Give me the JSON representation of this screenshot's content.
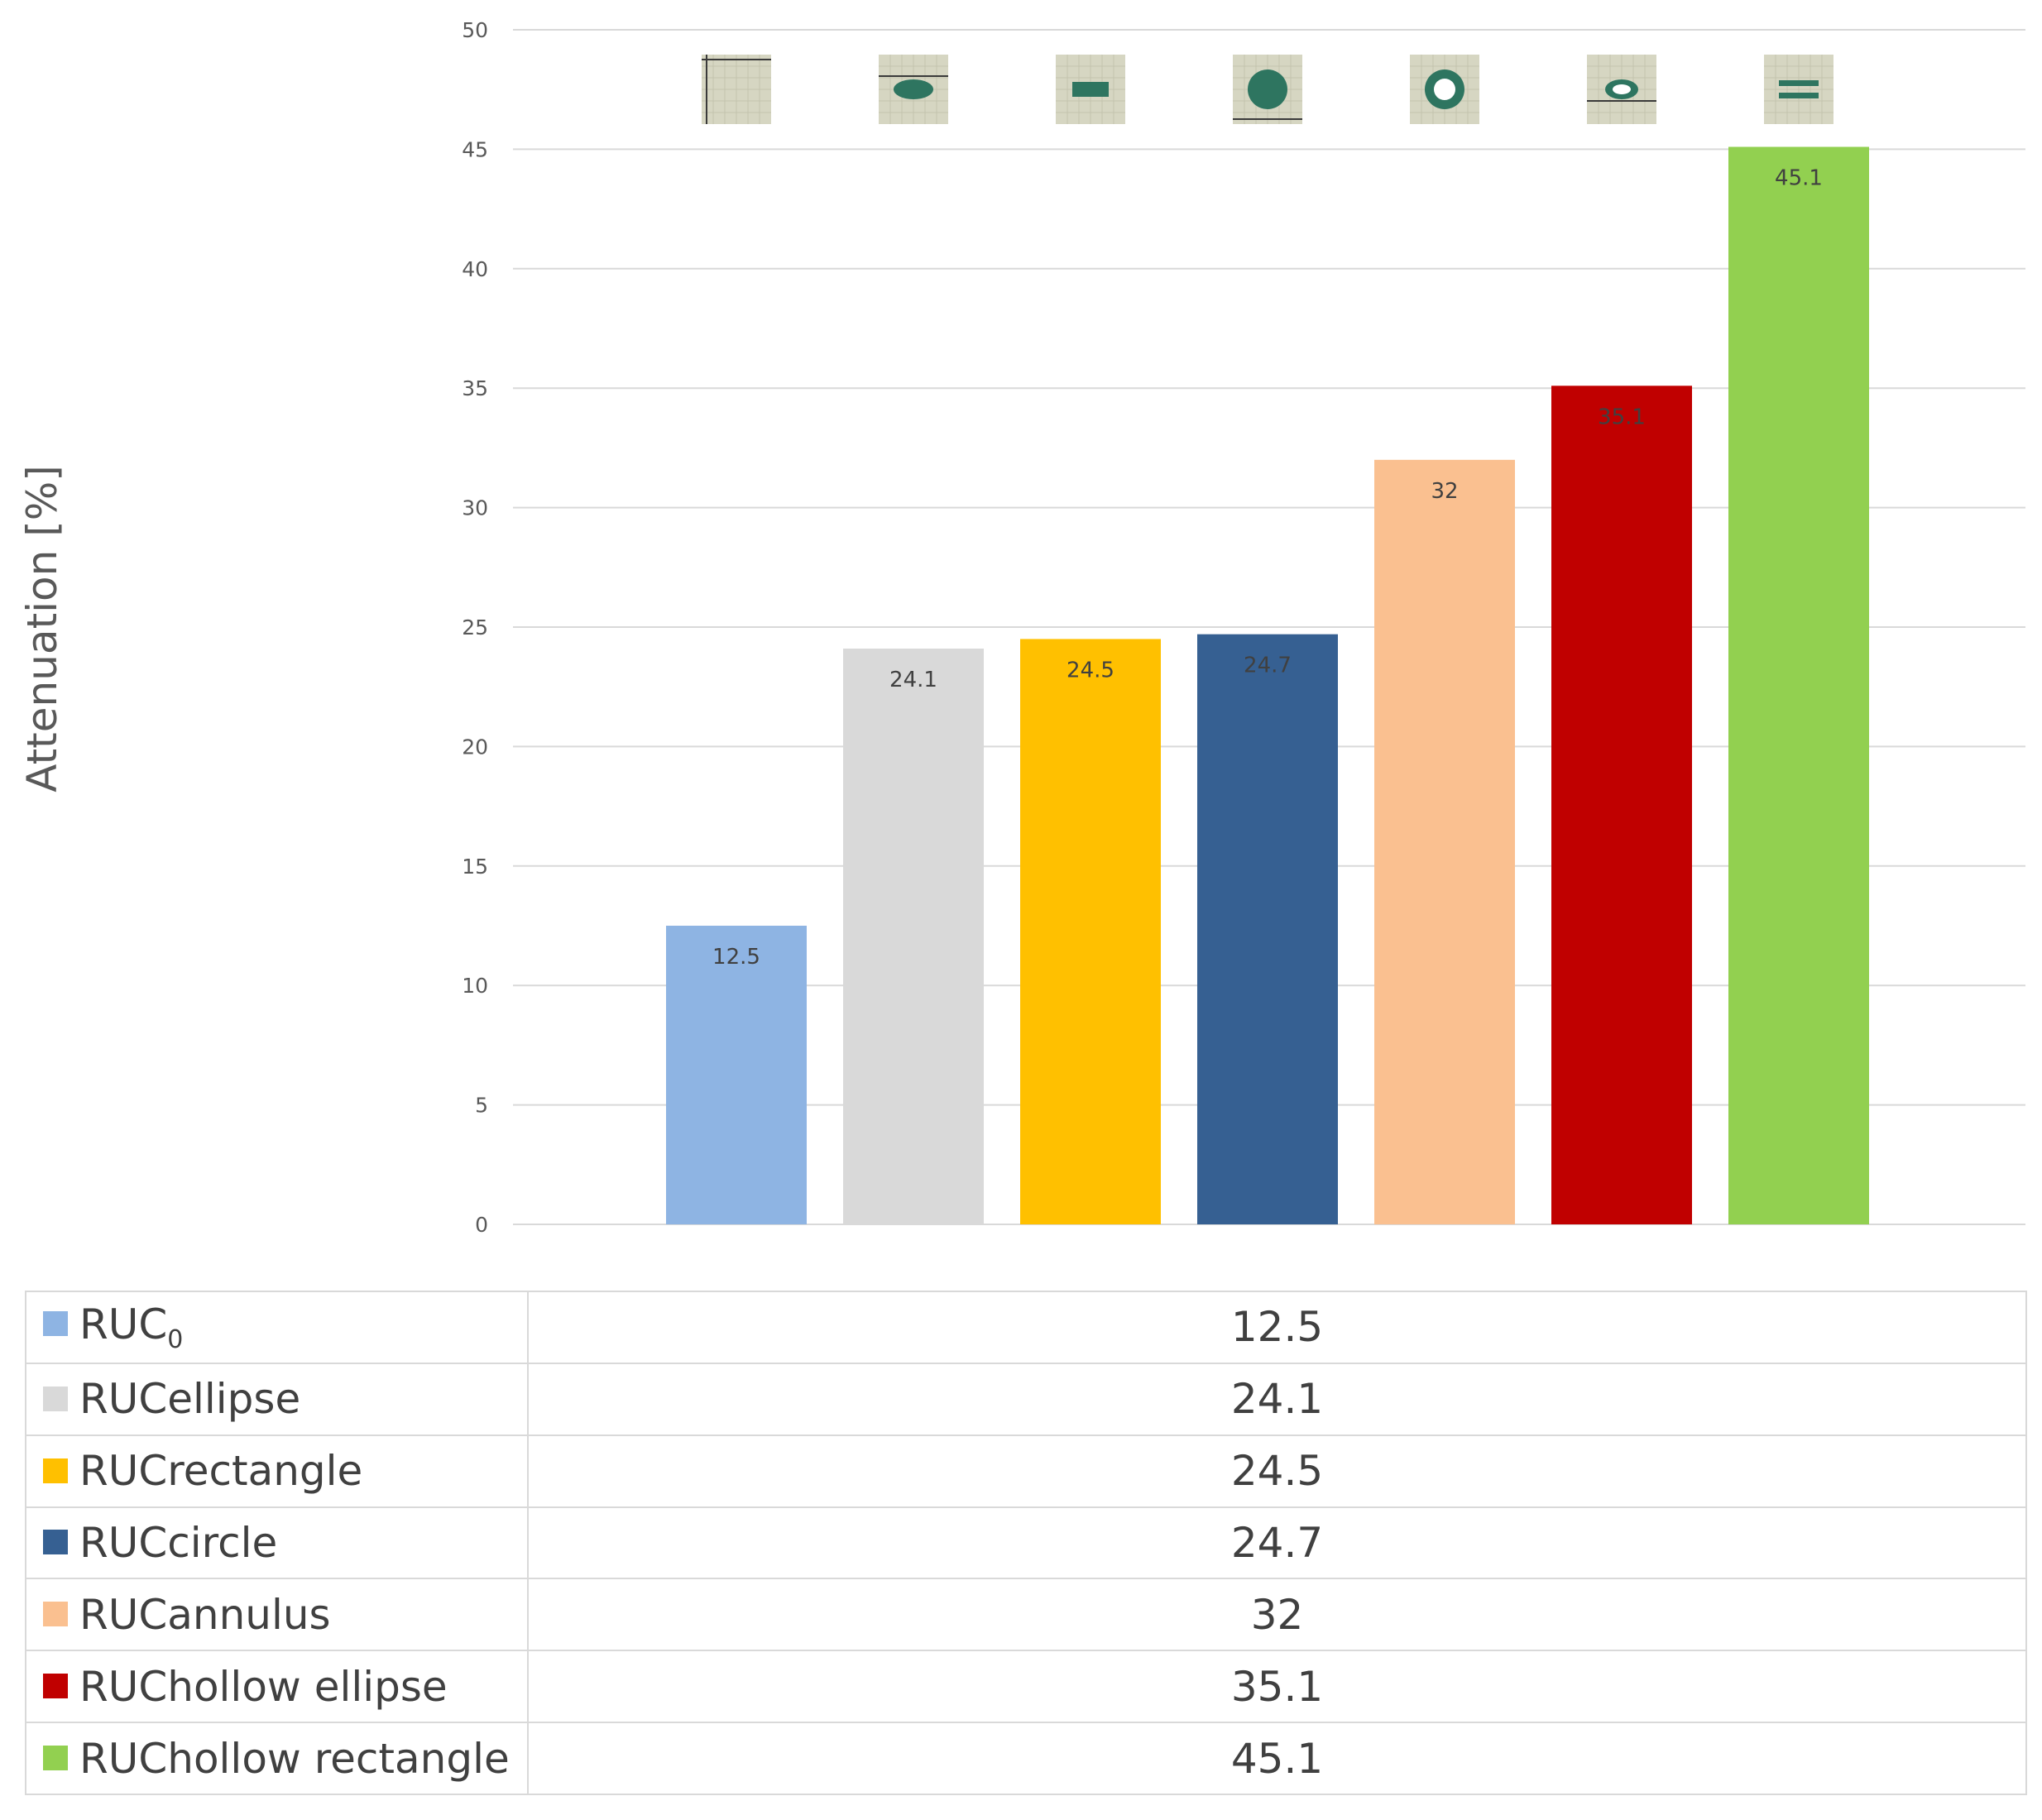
{
  "chart_data": {
    "type": "bar",
    "title": "",
    "ylabel": "Attenuation [%]",
    "xlabel": "",
    "ylim": [
      0,
      50
    ],
    "yticks": [
      0,
      5,
      10,
      15,
      20,
      25,
      30,
      35,
      40,
      45,
      50
    ],
    "grid": true,
    "legend": "data table below chart",
    "series": [
      {
        "name": "RUCo",
        "display_name": "RUC",
        "subscript": "0",
        "value": 12.5,
        "label": "12.5",
        "color": "#8EB4E3",
        "label_color": "#404040",
        "icon": "plain-square-cell-icon"
      },
      {
        "name": "RUCellipse",
        "display_name": "RUCellipse",
        "subscript": "",
        "value": 24.1,
        "label": "24.1",
        "color": "#D9D9D9",
        "label_color": "#404040",
        "icon": "ellipse-inclusion-cell-icon"
      },
      {
        "name": "RUCrectangle",
        "display_name": "RUCrectangle",
        "subscript": "",
        "value": 24.5,
        "label": "24.5",
        "color": "#FFC000",
        "label_color": "#404040",
        "icon": "rectangle-inclusion-cell-icon"
      },
      {
        "name": "RUCcircle",
        "display_name": "RUCcircle",
        "subscript": "",
        "value": 24.7,
        "label": "24.7",
        "color": "#366092",
        "label_color": "#404040",
        "icon": "circle-inclusion-cell-icon"
      },
      {
        "name": "RUCannulus",
        "display_name": "RUCannulus",
        "subscript": "",
        "value": 32,
        "label": "32",
        "color": "#FAC090",
        "label_color": "#404040",
        "icon": "annulus-inclusion-cell-icon"
      },
      {
        "name": "RUChollow ellipse",
        "display_name": "RUChollow ellipse",
        "subscript": "",
        "value": 35.1,
        "label": "35.1",
        "color": "#C00000",
        "label_color": "#8B0000",
        "icon": "hollow-ellipse-inclusion-cell-icon"
      },
      {
        "name": "RUChollow rectangle",
        "display_name": "RUChollow rectangle",
        "subscript": "",
        "value": 45.1,
        "label": "45.1",
        "color": "#92D050",
        "label_color": "#404040",
        "icon": "hollow-rectangle-inclusion-cell-icon"
      }
    ]
  },
  "colors": {
    "gridline": "#D9D9D9",
    "axis_text": "#595959",
    "cell_background": "#D6D6C2",
    "cell_line": "#3A3A3A",
    "inclusion": "#2E7560"
  }
}
